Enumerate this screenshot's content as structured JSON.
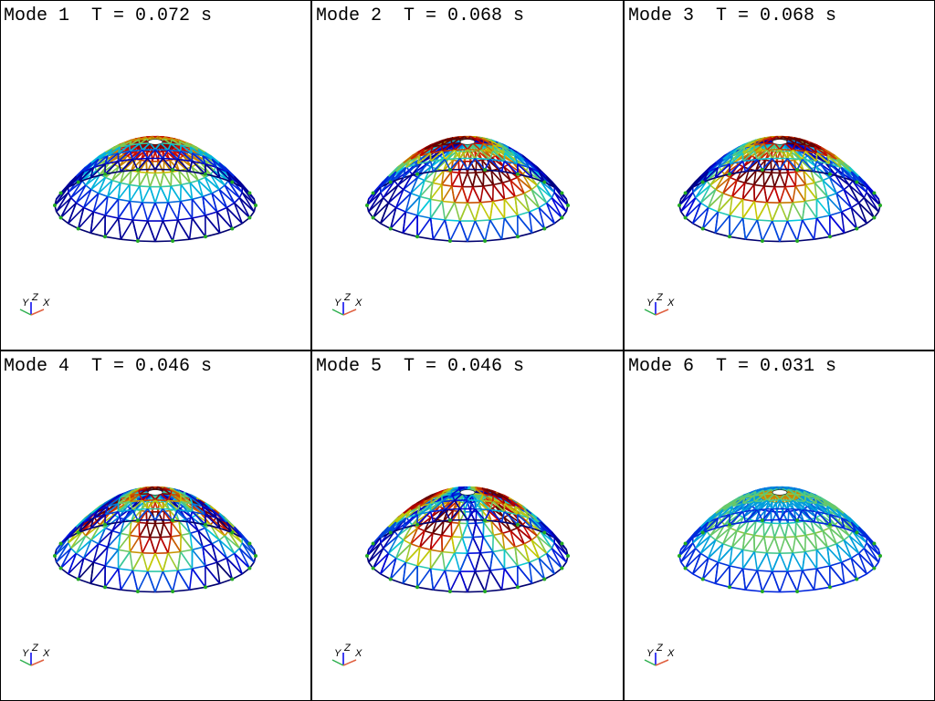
{
  "panels": [
    {
      "title": "Mode 1  T = 0.072 s"
    },
    {
      "title": "Mode 2  T = 0.068 s"
    },
    {
      "title": "Mode 3  T = 0.068 s"
    },
    {
      "title": "Mode 4  T = 0.046 s"
    },
    {
      "title": "Mode 5  T = 0.046 s"
    },
    {
      "title": "Mode 6  T = 0.031 s"
    }
  ],
  "triad": {
    "y": "Y",
    "z": "Z",
    "x": "X"
  }
}
